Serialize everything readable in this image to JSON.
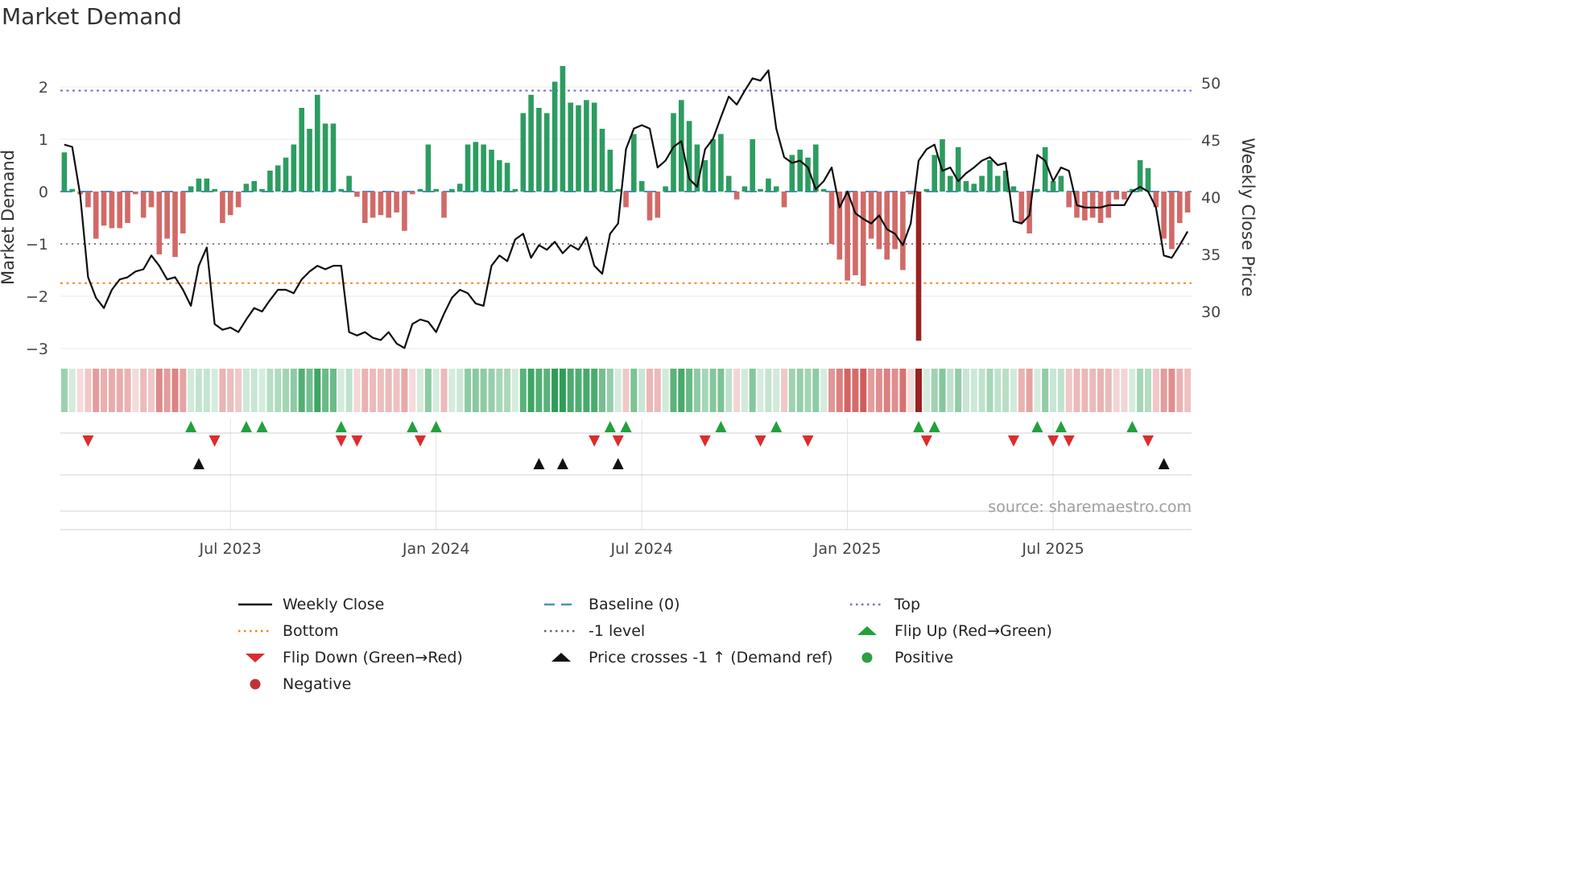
{
  "title": "Market Demand",
  "source_text": "source: sharemaestro.com",
  "axes": {
    "left_label": "Market Demand",
    "right_label": "Weekly Close Price",
    "left_ticks": [
      {
        "v": 2,
        "label": "2"
      },
      {
        "v": 1,
        "label": "1"
      },
      {
        "v": 0,
        "label": "0"
      },
      {
        "v": -1,
        "label": "−1"
      },
      {
        "v": -2,
        "label": "−2"
      },
      {
        "v": -3,
        "label": "−3"
      }
    ],
    "right_ticks": [
      {
        "v": 50,
        "label": "50"
      },
      {
        "v": 45,
        "label": "45"
      },
      {
        "v": 40,
        "label": "40"
      },
      {
        "v": 35,
        "label": "35"
      },
      {
        "v": 30,
        "label": "30"
      }
    ],
    "x_ticks": [
      {
        "week": 21,
        "label": "Jul 2023"
      },
      {
        "week": 47,
        "label": "Jan 2024"
      },
      {
        "week": 73,
        "label": "Jul 2024"
      },
      {
        "week": 99,
        "label": "Jan 2025"
      },
      {
        "week": 125,
        "label": "Jul 2025"
      }
    ]
  },
  "colors": {
    "bar_positive": "#2d9c61",
    "bar_negative": "#d06a68",
    "bar_negative_dark": "#9c2121",
    "price_line": "#0d0d0d",
    "baseline": "#4a8fc0",
    "top_line": "#7b6fd0",
    "bottom_line": "#ee8820",
    "minus1_line": "#595959",
    "flip_up": "#22a03c",
    "flip_down": "#dd2c2c",
    "price_cross": "#111111",
    "positive_dot": "#2e9e42",
    "negative_dot": "#bf3434",
    "heatmap_positive": "#2c9e56",
    "heatmap_negative": "#cc4a4a",
    "grid": "#e9e9e9",
    "panel_line": "#d2d2d2",
    "tick_text": "#444444",
    "source_text_color": "#9e9e9e"
  },
  "chart_data": {
    "type": "bar",
    "x_unit": "week_index",
    "x_range_note": "weekly data from ~Feb 2023 to ~Nov 2025, 143 weeks",
    "ylim_left": [
      -3.4,
      2.6
    ],
    "ylim_right": [
      26,
      52
    ],
    "grid": "horizontal-on",
    "series": [
      {
        "name": "Market Demand",
        "type": "bar",
        "axis": "left",
        "values": [
          0.75,
          0.05,
          -0.05,
          -0.3,
          -0.9,
          -0.65,
          -0.7,
          -0.7,
          -0.6,
          -0.05,
          -0.5,
          -0.3,
          -1.2,
          -0.9,
          -1.25,
          -0.8,
          0.1,
          0.25,
          0.25,
          0.05,
          -0.6,
          -0.45,
          -0.3,
          0.15,
          0.2,
          0.05,
          0.4,
          0.5,
          0.65,
          0.9,
          1.6,
          1.2,
          1.85,
          1.3,
          1.3,
          0.05,
          0.3,
          -0.1,
          -0.6,
          -0.5,
          -0.45,
          -0.5,
          -0.4,
          -0.75,
          -0.05,
          0.05,
          0.9,
          0.05,
          -0.5,
          0.05,
          0.15,
          0.9,
          0.95,
          0.9,
          0.8,
          0.6,
          0.55,
          0.05,
          1.5,
          1.85,
          1.6,
          1.5,
          2.1,
          2.4,
          1.7,
          1.65,
          1.75,
          1.7,
          1.2,
          0.8,
          0.05,
          -0.3,
          1.1,
          0.2,
          -0.55,
          -0.5,
          0.1,
          1.5,
          1.75,
          1.35,
          0.9,
          0.6,
          1.0,
          1.1,
          0.3,
          -0.15,
          0.1,
          1.0,
          0.05,
          0.25,
          0.1,
          -0.3,
          0.7,
          0.8,
          0.65,
          0.9,
          0.05,
          -1.0,
          -1.3,
          -1.7,
          -1.6,
          -1.8,
          -0.9,
          -1.1,
          -1.3,
          -1.1,
          -1.5,
          -0.05,
          -2.85,
          0.05,
          0.7,
          1.0,
          0.3,
          0.85,
          0.2,
          0.15,
          0.3,
          0.6,
          0.3,
          0.4,
          0.1,
          -0.6,
          -0.8,
          0.05,
          0.85,
          0.2,
          0.3,
          -0.3,
          -0.5,
          -0.55,
          -0.5,
          -0.6,
          -0.5,
          -0.15,
          -0.15,
          0.05,
          0.6,
          0.45,
          -0.3,
          -0.9,
          -1.1,
          -0.6,
          -0.4
        ]
      },
      {
        "name": "Weekly Close",
        "type": "line",
        "axis": "right",
        "values": [
          44.6,
          44.4,
          40.2,
          33.0,
          31.2,
          30.3,
          31.9,
          32.8,
          33.0,
          33.5,
          33.7,
          34.9,
          34.0,
          32.8,
          33.0,
          31.9,
          30.5,
          34.0,
          35.6,
          28.9,
          28.4,
          28.6,
          28.2,
          29.3,
          30.3,
          30.0,
          31.0,
          31.9,
          31.9,
          31.6,
          32.8,
          33.5,
          34.0,
          33.7,
          34.0,
          34.0,
          28.2,
          27.9,
          28.2,
          27.7,
          27.5,
          28.2,
          27.2,
          26.8,
          28.9,
          29.3,
          29.1,
          28.2,
          29.8,
          31.2,
          31.9,
          31.6,
          30.7,
          30.5,
          34.0,
          34.9,
          34.4,
          36.3,
          36.8,
          34.7,
          35.8,
          35.4,
          36.1,
          35.1,
          35.8,
          35.4,
          36.5,
          34.0,
          33.3,
          36.8,
          37.7,
          44.2,
          46.0,
          46.3,
          46.0,
          42.6,
          43.2,
          44.4,
          44.9,
          41.6,
          40.9,
          44.2,
          45.1,
          47.0,
          48.8,
          48.1,
          49.3,
          50.4,
          50.2,
          51.1,
          46.0,
          43.5,
          43.0,
          43.2,
          42.6,
          40.7,
          41.4,
          42.6,
          39.1,
          40.5,
          38.6,
          38.1,
          37.7,
          38.4,
          37.2,
          36.8,
          35.8,
          37.7,
          43.2,
          44.2,
          44.6,
          42.3,
          42.6,
          41.4,
          42.1,
          42.6,
          43.2,
          43.5,
          42.8,
          43.0,
          37.9,
          37.7,
          38.4,
          43.7,
          43.2,
          41.4,
          42.6,
          42.3,
          39.3,
          39.1,
          39.1,
          39.1,
          39.3,
          39.3,
          39.3,
          40.5,
          40.9,
          40.5,
          39.1,
          34.9,
          34.7,
          35.8,
          37.0
        ]
      }
    ],
    "reference_lines": [
      {
        "name": "Top",
        "value": 1.93,
        "style": "dotted",
        "color": "#7b6fd0"
      },
      {
        "name": "Baseline (0)",
        "value": 0,
        "style": "dashed",
        "color": "#4a8fc0"
      },
      {
        "name": "-1 level",
        "value": -1,
        "style": "fine-dotted",
        "color": "#595959"
      },
      {
        "name": "Bottom",
        "value": -1.75,
        "style": "dotted",
        "color": "#ee8820"
      }
    ],
    "markers": {
      "flip_up_weeks": [
        16,
        23,
        25,
        35,
        44,
        47,
        69,
        71,
        83,
        90,
        108,
        110,
        123,
        126,
        135
      ],
      "flip_down_weeks": [
        3,
        19,
        35,
        37,
        45,
        67,
        70,
        81,
        88,
        94,
        109,
        120,
        125,
        127,
        137
      ],
      "price_cross_weeks": [
        17,
        60,
        63,
        70,
        139
      ]
    },
    "heatmap_strip": "cell color = sign and magnitude of Market Demand per week"
  },
  "legend": {
    "items": [
      {
        "name": "weekly-close",
        "label": "Weekly Close",
        "icon": "line-solid",
        "color": "#0d0d0d"
      },
      {
        "name": "baseline",
        "label": "Baseline (0)",
        "icon": "line-dashed",
        "color": "#4a8fc0"
      },
      {
        "name": "top",
        "label": "Top",
        "icon": "line-dotted",
        "color": "#7b6fd0"
      },
      {
        "name": "bottom",
        "label": "Bottom",
        "icon": "line-dotted",
        "color": "#ee8820"
      },
      {
        "name": "minus1-level",
        "label": "-1 level",
        "icon": "line-dotted",
        "color": "#666666"
      },
      {
        "name": "flip-up",
        "label": "Flip Up (Red→Green)",
        "icon": "triangle-up",
        "color": "#22a03c"
      },
      {
        "name": "flip-down",
        "label": "Flip Down (Green→Red)",
        "icon": "triangle-down",
        "color": "#dd2c2c"
      },
      {
        "name": "price-cross",
        "label": "Price crosses -1 ↑ (Demand ref)",
        "icon": "triangle-up",
        "color": "#111111"
      },
      {
        "name": "positive",
        "label": "Positive",
        "icon": "circle",
        "color": "#2e9e42"
      },
      {
        "name": "negative",
        "label": "Negative",
        "icon": "circle",
        "color": "#bf3434"
      }
    ]
  }
}
